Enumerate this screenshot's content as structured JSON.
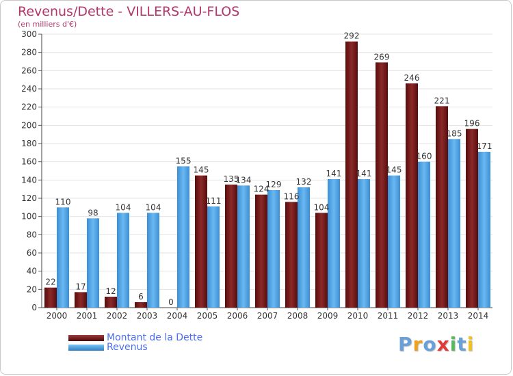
{
  "header": {
    "title": "Revenus/Dette - VILLERS-AU-FLOS",
    "subtitle": "(en milliers d'€)"
  },
  "legend": {
    "items": [
      {
        "label": "Montant de la Dette",
        "color": "#7a1a1a"
      },
      {
        "label": "Revenus",
        "color": "#4aa3e6"
      }
    ]
  },
  "logo": {
    "letters": [
      {
        "ch": "P",
        "color": "#6aa0d8"
      },
      {
        "ch": "r",
        "color": "#f0a020"
      },
      {
        "ch": "o",
        "color": "#6aa0d8"
      },
      {
        "ch": "x",
        "color": "#e03a3a"
      },
      {
        "ch": "i",
        "color": "#5cb85c"
      },
      {
        "ch": "t",
        "color": "#6aa0d8"
      },
      {
        "ch": "i",
        "color": "#f0c020"
      }
    ]
  },
  "chart_data": {
    "type": "bar",
    "title": "Revenus/Dette - VILLERS-AU-FLOS",
    "subtitle": "(en milliers d'€)",
    "categories": [
      "2000",
      "2001",
      "2002",
      "2003",
      "2004",
      "2005",
      "2006",
      "2007",
      "2008",
      "2009",
      "2010",
      "2011",
      "2012",
      "2013",
      "2014"
    ],
    "series": [
      {
        "name": "Montant de la Dette",
        "color": "#7a1a1a",
        "values": [
          22,
          17,
          12,
          6,
          0,
          145,
          135,
          124,
          116,
          104,
          292,
          269,
          246,
          221,
          196
        ]
      },
      {
        "name": "Revenus",
        "color": "#4aa3e6",
        "values": [
          110,
          98,
          104,
          104,
          155,
          111,
          134,
          129,
          132,
          141,
          141,
          145,
          160,
          185,
          171
        ]
      }
    ],
    "ylim": [
      0,
      300
    ],
    "yticks": [
      0,
      20,
      40,
      60,
      80,
      100,
      120,
      140,
      160,
      180,
      200,
      220,
      240,
      260,
      280,
      300
    ],
    "grid": true,
    "legend_position": "bottom-left"
  }
}
